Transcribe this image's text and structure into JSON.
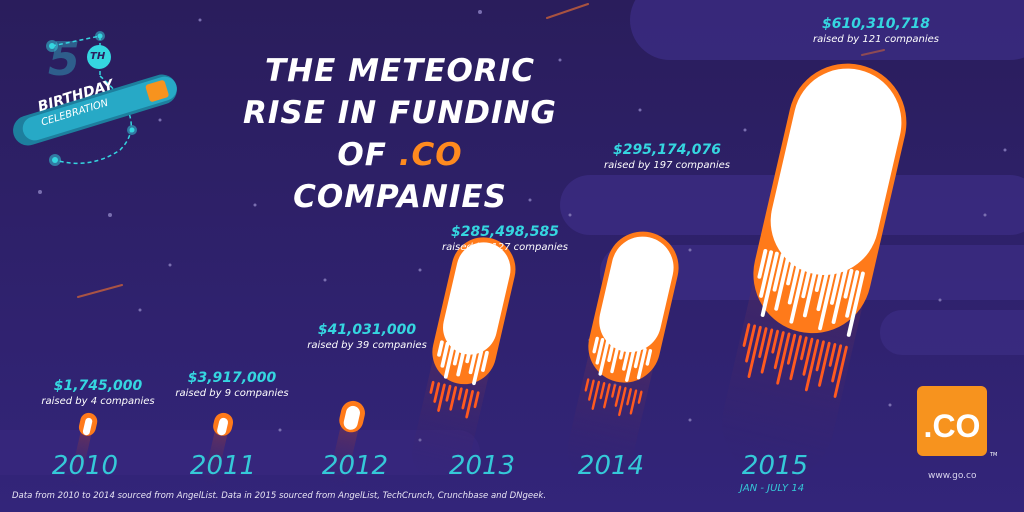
{
  "badge": {
    "number": "5",
    "ordinal": "TH",
    "line1": "BIRTHDAY",
    "line2": "CELEBRATION"
  },
  "title": {
    "line1": "THE METEORIC",
    "line2": "RISE IN FUNDING",
    "line3_prefix": "OF ",
    "line3_highlight": ".CO",
    "line3_suffix": " COMPANIES"
  },
  "footnote": "Data from 2010 to 2014 sourced from AngelList. Data in 2015 sourced from AngelList, TechCrunch, Crunchbase and DNgeek.",
  "logo": {
    "text": ".CO",
    "tm": "TM",
    "url": "www.go.co"
  },
  "colors": {
    "background": "#2c1f5e",
    "accent": "#ff8a1f",
    "amount": "#35d6e0",
    "year": "#35c9d8"
  },
  "chart_data": {
    "type": "bar",
    "categories": [
      "2010",
      "2011",
      "2012",
      "2013",
      "2014",
      "2015"
    ],
    "category_subtitles": [
      "",
      "",
      "",
      "",
      "",
      "JAN - JULY 14"
    ],
    "values": [
      1745000,
      3917000,
      41031000,
      285498585,
      295174076,
      610310718
    ],
    "value_labels": [
      "$1,745,000",
      "$3,917,000",
      "$41,031,000",
      "$285,498,585",
      "$295,174,076",
      "$610,310,718"
    ],
    "companies_labels": [
      "raised by 4 companies",
      "raised by 9 companies",
      "raised by 39 companies",
      "raised by 127 companies",
      "raised by 197 companies",
      "raised by 121 companies"
    ],
    "title": "THE METEORIC RISE IN FUNDING OF .CO COMPANIES",
    "xlabel": "",
    "ylabel": "",
    "grid": false
  }
}
